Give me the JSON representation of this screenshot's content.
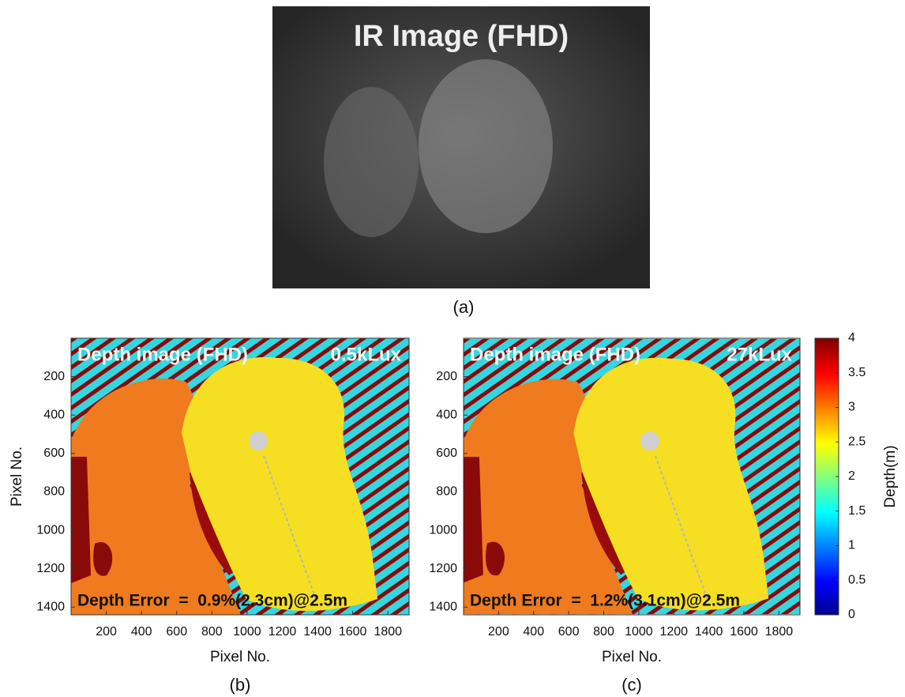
{
  "figure": {
    "ir_panel": {
      "title": "IR Image (FHD)",
      "caption": "(a)"
    },
    "depth_panels": [
      {
        "title": "Depth image (FHD)",
        "condition": "0.5kLux",
        "annotation": "Depth Error  =  0.9%(2.3cm)@2.5m",
        "caption": "(b)",
        "xlabel": "Pixel No.",
        "ylabel": "Pixel No.",
        "xlim": [
          0,
          1920
        ],
        "xticks": [
          200,
          400,
          600,
          800,
          1000,
          1200,
          1400,
          1600,
          1800
        ],
        "ylim": [
          0,
          1440
        ],
        "yticks": [
          200,
          400,
          600,
          800,
          1000,
          1200,
          1400
        ]
      },
      {
        "title": "Depth image (FHD)",
        "condition": "27kLux",
        "annotation": "Depth Error  =  1.2%(3.1cm)@2.5m",
        "caption": "(c)",
        "xlabel": "Pixel No.",
        "xlim": [
          0,
          1920
        ],
        "xticks": [
          200,
          400,
          600,
          800,
          1000,
          1200,
          1400,
          1600,
          1800
        ],
        "ylim": [
          0,
          1440
        ],
        "yticks": [
          200,
          400,
          600,
          800,
          1000,
          1200,
          1400
        ]
      }
    ],
    "colorbar": {
      "label": "Depth(m)",
      "lim": [
        0,
        4
      ],
      "ticks": [
        0,
        0.5,
        1,
        1.5,
        2,
        2.5,
        3,
        3.5,
        4
      ]
    }
  }
}
